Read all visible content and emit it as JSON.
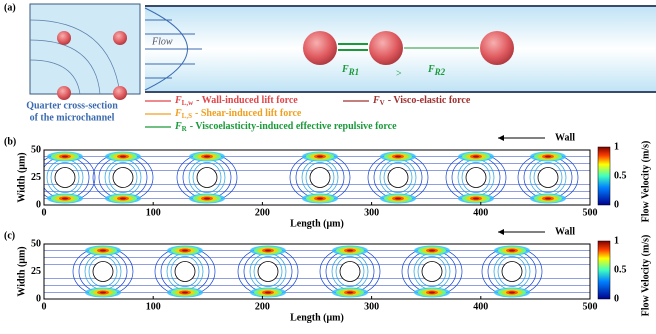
{
  "panel_a": {
    "label": "(a)",
    "flow": "Flow",
    "forces": [
      {
        "symbol": "F",
        "sub": "R1"
      },
      {
        "symbol": "F",
        "sub": "R2"
      }
    ],
    "comparison": ">",
    "caption": [
      "Quarter cross-section",
      "of the microchannel"
    ],
    "legend": [
      {
        "symbol": "F",
        "sub": "L,w",
        "text": "- Wall-induced lift force",
        "color": "#e0454a"
      },
      {
        "symbol": "F",
        "sub": "L,S",
        "text": "- Shear-induced lift force",
        "color": "#f0a020"
      },
      {
        "symbol": "F",
        "sub": "R",
        "text": "- Viscoelasticity-induced effective repulsive force",
        "color": "#1a9a3a"
      },
      {
        "symbol": "F",
        "sub": "V",
        "text": "- Visco-elastic force",
        "color": "#a03030"
      }
    ]
  },
  "panel_b": {
    "label": "(b)",
    "wall": "Wall",
    "xlabel": "Length (μm)",
    "ylabel": "Width (μm)",
    "xticks": [
      "0",
      "100",
      "200",
      "300",
      "400",
      "500"
    ],
    "yticks": [
      "0",
      "25",
      "50"
    ],
    "cbar_ticks": [
      "1",
      "0.5",
      "0"
    ],
    "cbar_label": "Flow Velocity (m/s)"
  },
  "panel_c": {
    "label": "(c)",
    "wall": "Wall",
    "xlabel": "Length (μm)",
    "ylabel": "Width (μm)",
    "xticks": [
      "0",
      "100",
      "200",
      "300",
      "400",
      "500"
    ],
    "yticks": [
      "0",
      "25",
      "50"
    ],
    "cbar_ticks": [
      "1",
      "0.5",
      "0"
    ],
    "cbar_label": "Flow Velocity (m/s)"
  }
}
